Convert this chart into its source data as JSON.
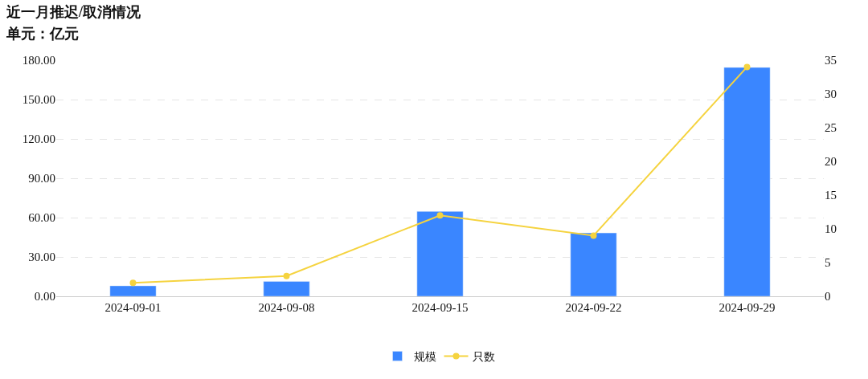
{
  "chart_data": {
    "type": "bar",
    "title": "近一月推迟/取消情况",
    "subtitle": "单元：亿元",
    "categories": [
      "2024-09-01",
      "2024-09-08",
      "2024-09-15",
      "2024-09-22",
      "2024-09-29"
    ],
    "series": [
      {
        "name": "规模",
        "color": "#3a86ff",
        "values": [
          8,
          11.4,
          64.7,
          48.3,
          174.5
        ]
      },
      {
        "name": "只数",
        "type": "line",
        "axis": "y2",
        "color": "#f5d33f",
        "marker": "circle",
        "values": [
          2,
          3,
          12,
          9,
          34
        ]
      }
    ],
    "ylim": [
      0,
      180
    ],
    "yticks": [
      {
        "value": 0,
        "label": "0.00"
      },
      {
        "value": 30,
        "label": "30.00"
      },
      {
        "value": 60,
        "label": "60.00"
      },
      {
        "value": 90,
        "label": "90.00"
      },
      {
        "value": 120,
        "label": "120.00"
      },
      {
        "value": 150,
        "label": "150.00"
      },
      {
        "value": 180,
        "label": "180.00"
      }
    ],
    "y2lim": [
      0,
      35
    ],
    "y2ticks": [
      0,
      5,
      10,
      15,
      20,
      25,
      30,
      35
    ],
    "grid": "y",
    "legend": "bottom"
  }
}
